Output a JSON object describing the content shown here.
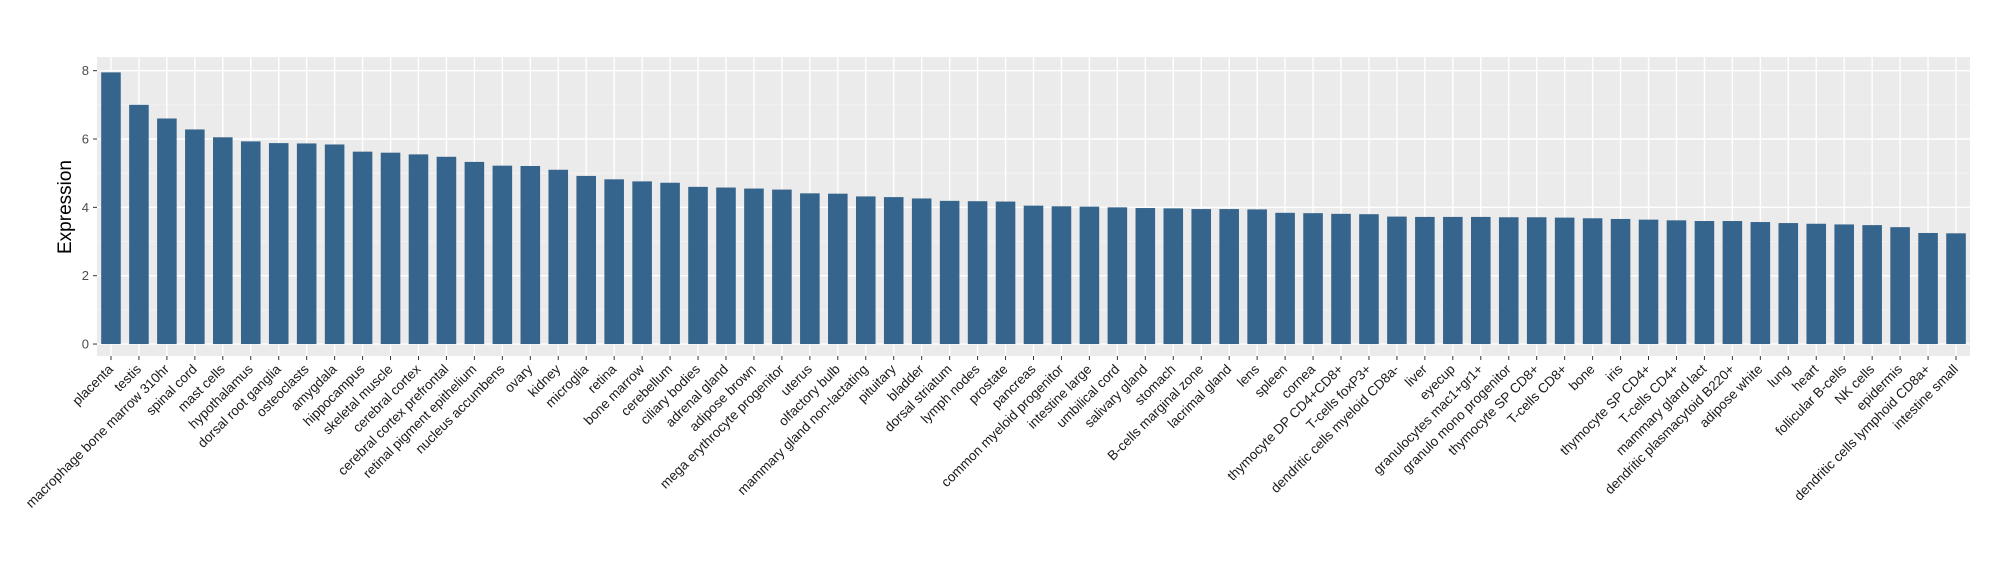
{
  "colors": {
    "bar": "#35648c",
    "panel_background": "#ebebeb",
    "grid_major": "#ffffff",
    "grid_minor": "#f5f5f5"
  },
  "chart_data": {
    "type": "bar",
    "title": "",
    "xlabel": "",
    "ylabel": "Expression",
    "ylim": [
      -0.35,
      8.4
    ],
    "yticks": [
      0,
      2,
      4,
      6,
      8
    ],
    "grid": true,
    "categories": [
      "placenta",
      "testis",
      "macrophage bone marrow 310hr",
      "spinal cord",
      "mast cells",
      "hypothalamus",
      "dorsal root ganglia",
      "osteoclasts",
      "amygdala",
      "hippocampus",
      "skeletal muscle",
      "cerebral cortex",
      "cerebral cortex prefrontal",
      "retinal pigment epithelium",
      "nucleus accumbens",
      "ovary",
      "kidney",
      "microglia",
      "retina",
      "bone marrow",
      "cerebellum",
      "ciliary bodies",
      "adrenal gland",
      "adipose brown",
      "mega erythrocyte progenitor",
      "uterus",
      "olfactory bulb",
      "mammary gland non-lactating",
      "pituitary",
      "bladder",
      "dorsal striatum",
      "lymph nodes",
      "prostate",
      "pancreas",
      "common myeloid progenitor",
      "intestine large",
      "umbilical cord",
      "salivary gland",
      "stomach",
      "B-cells marginal zone",
      "lacrimal gland",
      "lens",
      "spleen",
      "cornea",
      "thymocyte DP CD4+CD8+",
      "T-cells foxP3+",
      "dendritic cells myeloid CD8a-",
      "liver",
      "eyecup",
      "granulocytes mac1+gr1+",
      "granulo mono progenitor",
      "thymocyte SP CD8+",
      "T-cells CD8+",
      "bone",
      "iris",
      "thymocyte SP CD4+",
      "T-cells CD4+",
      "mammary gland lact",
      "dendritic plasmacytoid B220+",
      "adipose white",
      "lung",
      "heart",
      "follicular B-cells",
      "NK cells",
      "epidermis",
      "dendritic cells lymphoid CD8a+",
      "intestine small"
    ],
    "values": [
      7.95,
      7.0,
      6.6,
      6.28,
      6.05,
      5.93,
      5.88,
      5.87,
      5.84,
      5.63,
      5.6,
      5.55,
      5.48,
      5.33,
      5.22,
      5.21,
      5.1,
      4.92,
      4.82,
      4.76,
      4.72,
      4.6,
      4.58,
      4.55,
      4.52,
      4.41,
      4.4,
      4.32,
      4.3,
      4.26,
      4.19,
      4.18,
      4.17,
      4.05,
      4.03,
      4.02,
      4.0,
      3.98,
      3.97,
      3.95,
      3.95,
      3.94,
      3.84,
      3.83,
      3.81,
      3.8,
      3.73,
      3.72,
      3.72,
      3.72,
      3.71,
      3.71,
      3.7,
      3.68,
      3.66,
      3.64,
      3.62,
      3.6,
      3.6,
      3.57,
      3.54,
      3.52,
      3.5,
      3.48,
      3.42,
      3.25,
      3.24
    ]
  }
}
